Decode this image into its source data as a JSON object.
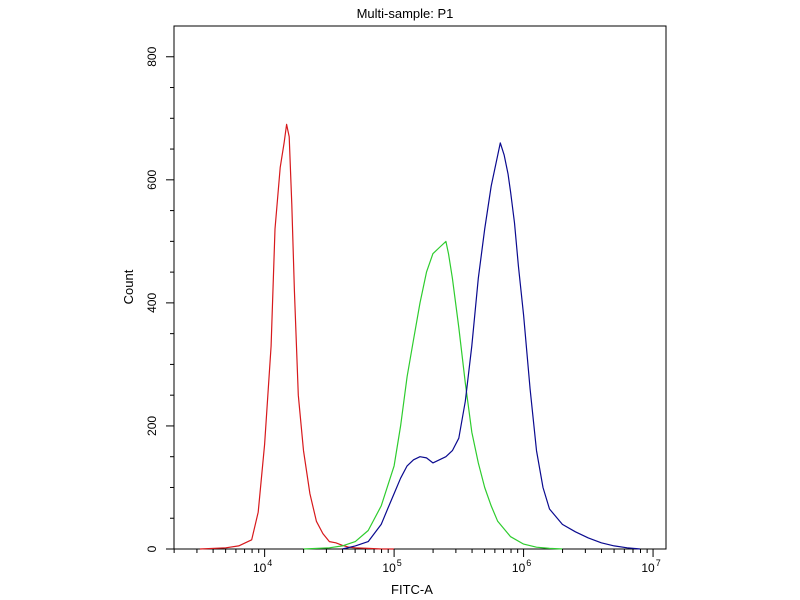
{
  "chart_data": {
    "type": "line",
    "title": "Multi-sample: P1",
    "xlabel": "FITC-A",
    "ylabel": "Count",
    "x_scale": "log",
    "xlim_log10": [
      3.3,
      7.1
    ],
    "ylim": [
      0,
      850
    ],
    "y_ticks": [
      {
        "value": 0,
        "label": "0"
      },
      {
        "value": 200,
        "label": "200"
      },
      {
        "value": 400,
        "label": "400"
      },
      {
        "value": 600,
        "label": "600"
      },
      {
        "value": 800,
        "label": "800"
      }
    ],
    "x_ticks": [
      {
        "log10": 4,
        "base": "10",
        "exp": "4"
      },
      {
        "log10": 5,
        "base": "10",
        "exp": "5"
      },
      {
        "log10": 6,
        "base": "10",
        "exp": "6"
      },
      {
        "log10": 7,
        "base": "10",
        "exp": "7"
      }
    ],
    "series": [
      {
        "name": "red",
        "color": "#d7191c",
        "x_log10": [
          3.5,
          3.7,
          3.8,
          3.9,
          3.95,
          4.0,
          4.05,
          4.08,
          4.12,
          4.15,
          4.17,
          4.19,
          4.21,
          4.23,
          4.26,
          4.3,
          4.35,
          4.4,
          4.45,
          4.5,
          4.55,
          4.6,
          4.65,
          4.7,
          4.8,
          4.9,
          5.0
        ],
        "y": [
          0,
          2,
          5,
          15,
          60,
          170,
          330,
          520,
          620,
          660,
          690,
          670,
          560,
          420,
          250,
          160,
          90,
          45,
          25,
          12,
          10,
          6,
          3,
          2,
          1,
          0,
          0
        ]
      },
      {
        "name": "green",
        "color": "#2ecc2e",
        "x_log10": [
          4.3,
          4.5,
          4.6,
          4.7,
          4.8,
          4.9,
          5.0,
          5.05,
          5.1,
          5.15,
          5.2,
          5.25,
          5.3,
          5.35,
          5.4,
          5.42,
          5.45,
          5.5,
          5.55,
          5.6,
          5.65,
          5.7,
          5.75,
          5.8,
          5.9,
          6.0,
          6.1,
          6.2,
          6.3
        ],
        "y": [
          0,
          2,
          5,
          12,
          30,
          70,
          135,
          200,
          280,
          340,
          400,
          450,
          480,
          490,
          500,
          480,
          440,
          360,
          270,
          190,
          140,
          100,
          70,
          45,
          20,
          8,
          3,
          1,
          0
        ]
      },
      {
        "name": "blue",
        "color": "#0a0a8f",
        "x_log10": [
          4.6,
          4.7,
          4.8,
          4.9,
          4.95,
          5.0,
          5.05,
          5.1,
          5.15,
          5.2,
          5.25,
          5.3,
          5.35,
          5.4,
          5.45,
          5.5,
          5.55,
          5.6,
          5.65,
          5.7,
          5.75,
          5.8,
          5.82,
          5.85,
          5.88,
          5.9,
          5.93,
          5.96,
          6.0,
          6.05,
          6.1,
          6.15,
          6.2,
          6.3,
          6.4,
          6.5,
          6.6,
          6.7,
          6.8,
          6.9
        ],
        "y": [
          0,
          5,
          12,
          40,
          65,
          90,
          115,
          135,
          145,
          150,
          148,
          140,
          145,
          150,
          160,
          180,
          240,
          330,
          440,
          520,
          590,
          640,
          660,
          640,
          610,
          580,
          530,
          460,
          380,
          260,
          160,
          100,
          65,
          40,
          28,
          18,
          10,
          5,
          2,
          0
        ]
      }
    ]
  }
}
